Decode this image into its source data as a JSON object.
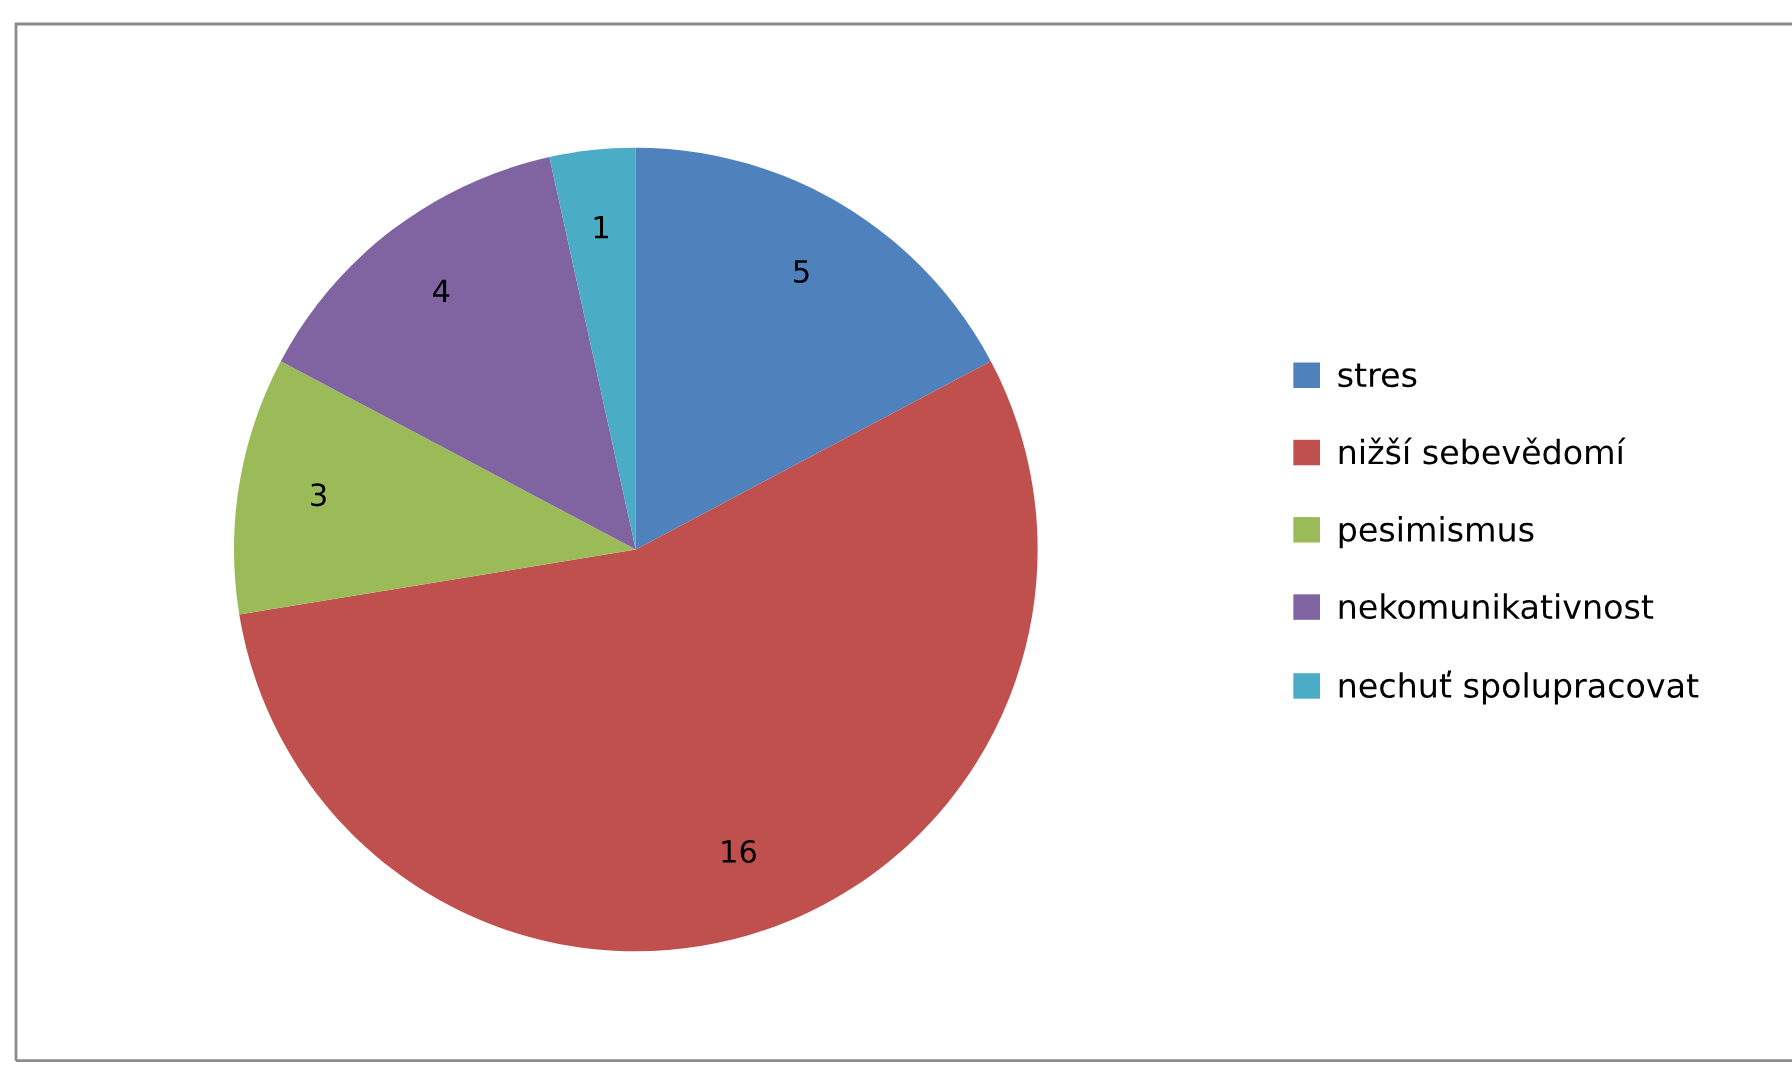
{
  "chart_data": {
    "type": "pie",
    "categories": [
      "stres",
      "nižší sebevědomí",
      "pesimismus",
      "nekomunikativnost",
      "nechuť spolupracovat"
    ],
    "values": [
      5,
      16,
      3,
      4,
      1
    ],
    "colors": [
      "#4f81bd",
      "#c0504d",
      "#9bbb59",
      "#8064a2",
      "#4bacc6"
    ],
    "data_labels": true,
    "legend": "right"
  }
}
